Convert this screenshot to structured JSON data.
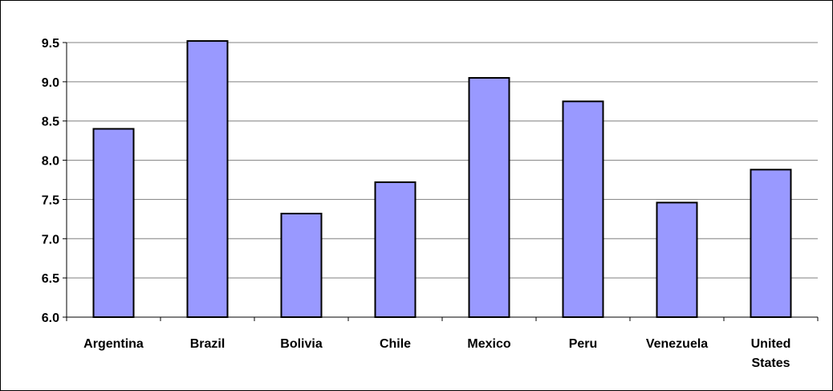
{
  "chart_data": {
    "type": "bar",
    "categories": [
      "Argentina",
      "Brazil",
      "Bolivia",
      "Chile",
      "Mexico",
      "Peru",
      "Venezuela",
      "United States"
    ],
    "category_lines": [
      [
        "Argentina"
      ],
      [
        "Brazil"
      ],
      [
        "Bolivia"
      ],
      [
        "Chile"
      ],
      [
        "Mexico"
      ],
      [
        "Peru"
      ],
      [
        "Venezuela"
      ],
      [
        "United",
        "States"
      ]
    ],
    "values": [
      8.4,
      9.52,
      7.32,
      7.72,
      9.05,
      8.75,
      7.46,
      7.88
    ],
    "ylim": [
      6.0,
      9.5
    ],
    "yticks": [
      "6.0",
      "6.5",
      "7.0",
      "7.5",
      "8.0",
      "8.5",
      "9.0",
      "9.5"
    ],
    "title": "",
    "xlabel": "",
    "ylabel": "",
    "grid": true,
    "legend": "none",
    "colors": {
      "bar_fill": "#9999ff",
      "bar_stroke": "#000000",
      "grid": "#808080",
      "axis": "#000000"
    }
  }
}
